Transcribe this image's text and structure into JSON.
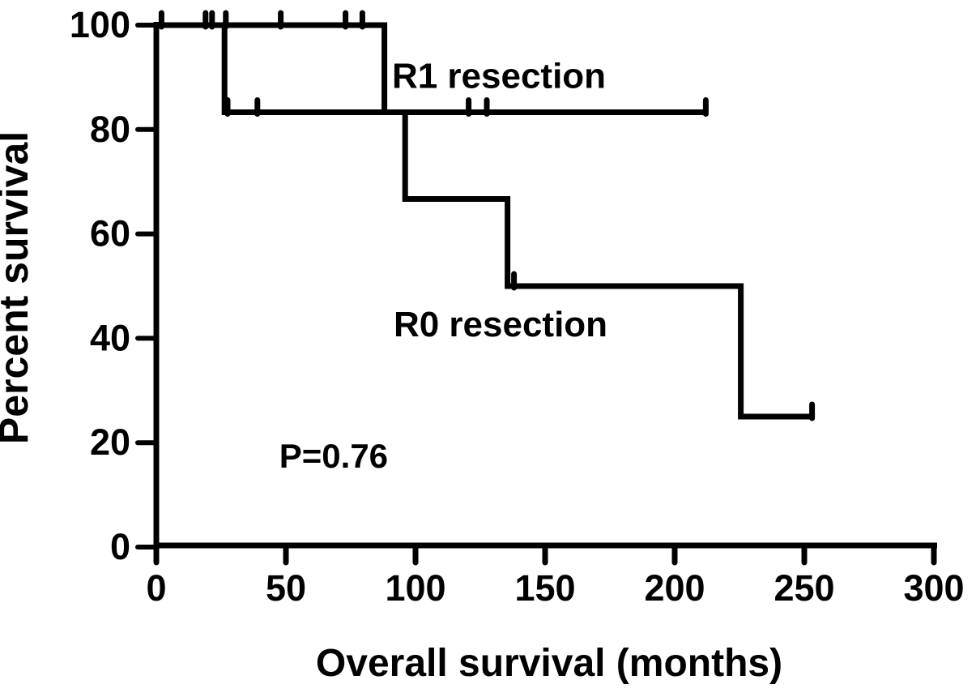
{
  "figure": {
    "background": "#ffffff",
    "ink_color": "#000000"
  },
  "chart_data": {
    "type": "line",
    "subtype": "kaplan-meier-step-curves",
    "title": "",
    "xlabel": "Overall survival (months)",
    "ylabel": "Percent survival",
    "xlim": [
      0,
      300
    ],
    "ylim": [
      0,
      100
    ],
    "x_ticks": [
      0,
      50,
      100,
      150,
      200,
      250,
      300
    ],
    "y_ticks": [
      0,
      20,
      40,
      60,
      80,
      100
    ],
    "grid": false,
    "legend_position": "none",
    "series": [
      {
        "name": "R1 resection",
        "color": "#000000",
        "points": [
          [
            0,
            100
          ],
          [
            26.3,
            100
          ],
          [
            26.3,
            83.3
          ],
          [
            212.3,
            83.3
          ]
        ],
        "censor_marks": [
          [
            2,
            100
          ],
          [
            19,
            100
          ],
          [
            21.5,
            100
          ],
          [
            26.8,
            100
          ],
          [
            27.5,
            83.3
          ],
          [
            39,
            83.3
          ],
          [
            120.5,
            83.3
          ],
          [
            127.5,
            83.3
          ],
          [
            212,
            83.3
          ]
        ]
      },
      {
        "name": "R0 resection",
        "color": "#000000",
        "points": [
          [
            0,
            100
          ],
          [
            88,
            100
          ],
          [
            88,
            83.3
          ],
          [
            96,
            83.3
          ],
          [
            96,
            66.7
          ],
          [
            135.5,
            66.7
          ],
          [
            135.5,
            50
          ],
          [
            225.5,
            50
          ],
          [
            225.5,
            25
          ],
          [
            253.5,
            25
          ]
        ],
        "censor_marks": [
          [
            48,
            100
          ],
          [
            73,
            100
          ],
          [
            79.5,
            100
          ],
          [
            138,
            50
          ],
          [
            253,
            25
          ]
        ]
      }
    ],
    "annotations": [
      {
        "id": "r1-label",
        "text": "R1 resection",
        "x": 132.2,
        "y": 88.0
      },
      {
        "id": "r0-label",
        "text": "R0 resection",
        "x": 132.8,
        "y": 40.4
      },
      {
        "id": "p-value",
        "text": "P=0.76",
        "x": 68.4,
        "y": 15.2
      }
    ]
  }
}
